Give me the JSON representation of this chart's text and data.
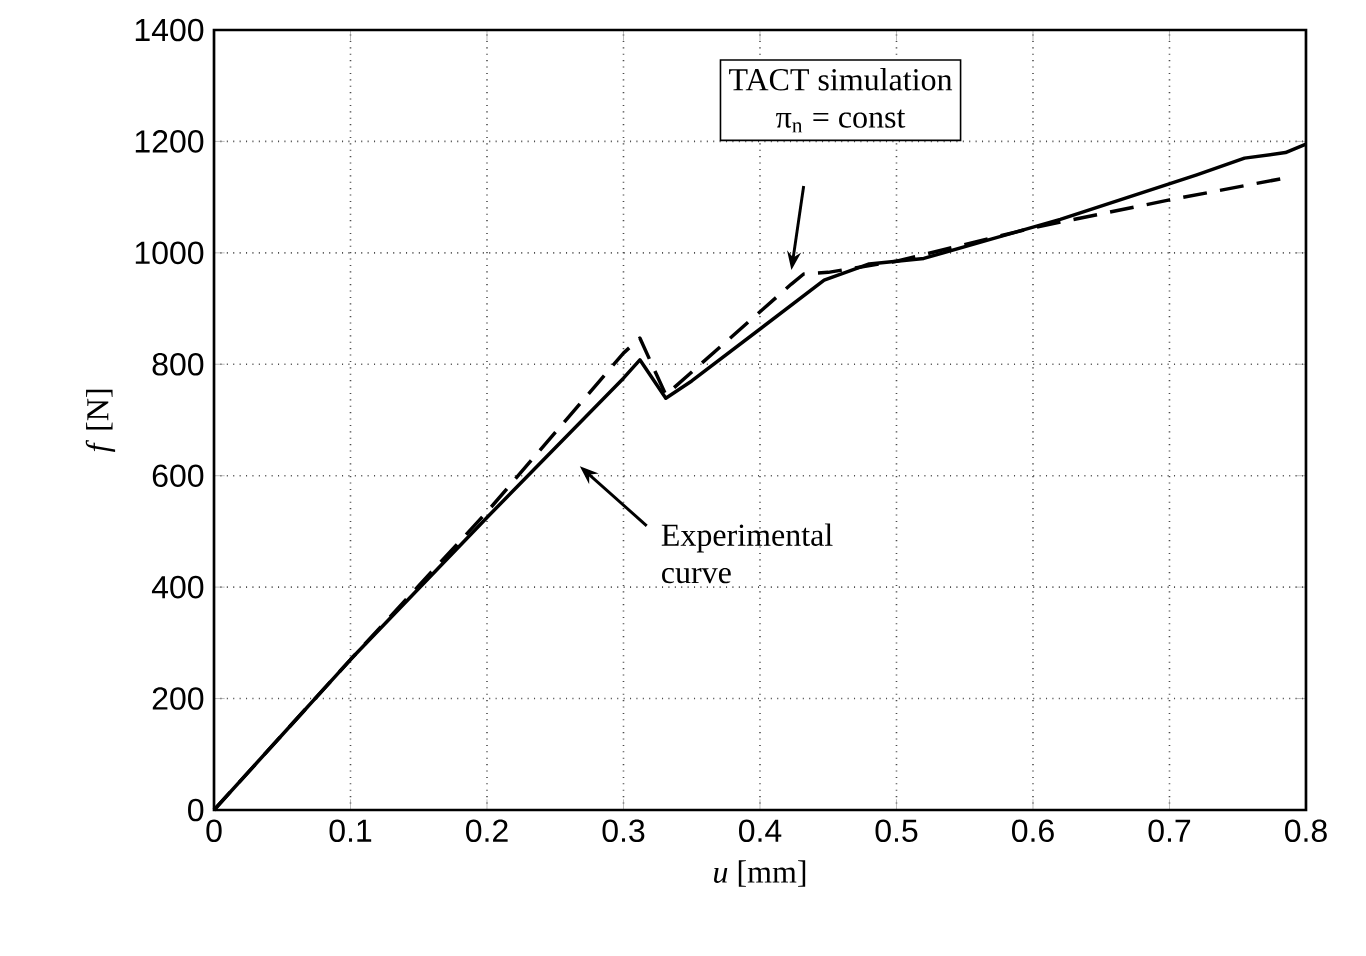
{
  "chart_data": {
    "type": "line",
    "xlabel": "*u* [mm]",
    "ylabel": "*f* [N]",
    "xlim": [
      0,
      0.8
    ],
    "ylim": [
      0,
      1400
    ],
    "xticks": [
      0,
      0.1,
      0.2,
      0.3,
      0.4,
      0.5,
      0.6,
      0.7,
      0.8
    ],
    "yticks": [
      0,
      200,
      400,
      600,
      800,
      1000,
      1200,
      1400
    ],
    "grid": true,
    "series": [
      {
        "color": "#000000",
        "line_style": "solid",
        "x": [
          0,
          0.05,
          0.1,
          0.2,
          0.3,
          0.312,
          0.331,
          0.35,
          0.447,
          0.48,
          0.52,
          0.57,
          0.62,
          0.67,
          0.72,
          0.755,
          0.785,
          0.8
        ],
        "values": [
          0,
          135,
          270,
          525,
          775,
          808,
          739,
          770,
          951,
          980,
          990,
          1025,
          1060,
          1100,
          1140,
          1170,
          1180,
          1195
        ]
      },
      {
        "color": "#000000",
        "line_style": "dashed",
        "x": [
          0,
          0.05,
          0.1,
          0.2,
          0.3,
          0.312,
          0.331,
          0.423,
          0.432,
          0.45,
          0.5,
          0.6,
          0.7,
          0.784
        ],
        "values": [
          0,
          135,
          270,
          535,
          820,
          847,
          745,
          944,
          962,
          965,
          985,
          1045,
          1095,
          1134
        ]
      }
    ],
    "annotations": [
      "TACT simulation",
      "π$_{n}$ = const",
      "Experimental curve"
    ]
  }
}
